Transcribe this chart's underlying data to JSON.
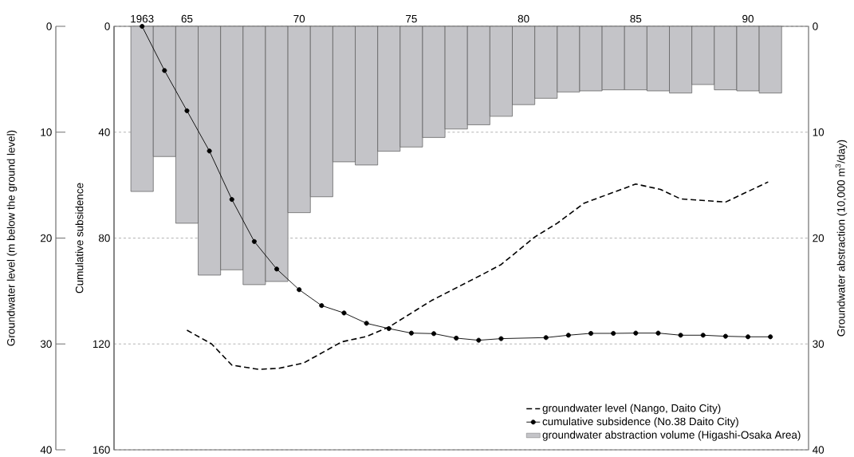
{
  "chart_data": {
    "type": "bar",
    "ylabel": "Groundwater level (m below the ground level)",
    "y3label": "Cumulative subsidence",
    "y2label": "Groundwater abstraction (10,000 m$^{3}$/day)",
    "xlim": [
      1961.75,
      1992.7
    ],
    "xticks": [
      1963,
      {
        "value": 1965,
        "label": "65"
      },
      {
        "value": 1970,
        "label": "70"
      },
      {
        "value": 1975,
        "label": "75"
      },
      {
        "value": 1980,
        "label": "80"
      },
      {
        "value": 1985,
        "label": "85"
      },
      {
        "value": 1990,
        "label": "90"
      }
    ],
    "ylim": [
      40,
      0
    ],
    "yticks": [
      0,
      10,
      20,
      30,
      40
    ],
    "y2lim": [
      40,
      0
    ],
    "y2ticks": [
      0,
      10,
      20,
      30,
      40
    ],
    "y3lim": [
      160,
      0
    ],
    "y3ticks": [
      0,
      40,
      80,
      120,
      160
    ],
    "grid": "y",
    "legend": "bottom right",
    "series": [
      {
        "name": "groundwater level (Nango, Daito City)",
        "type": "line",
        "axis": "y",
        "color": "#000000",
        "line_style": "dashed",
        "marker": "none",
        "x": [
          1965.0,
          1966.1,
          1967.0,
          1968.2,
          1969.1,
          1970.2,
          1971.9,
          1973.0,
          1974.0,
          1975.9,
          1978.2,
          1979.0,
          1980.5,
          1981.5,
          1982.7,
          1985.0,
          1986.1,
          1987.0,
          1989.0,
          1990.9
        ],
        "values": [
          28.7,
          30.0,
          32.0,
          32.4,
          32.3,
          31.8,
          29.8,
          29.3,
          28.4,
          25.9,
          23.4,
          22.5,
          19.9,
          18.6,
          16.7,
          14.9,
          15.4,
          16.3,
          16.6,
          14.7
        ]
      },
      {
        "name": "cumulative subsidence (No.38 Daito City)",
        "type": "line",
        "axis": "y3",
        "color": "#000000",
        "line_style": "solid",
        "marker": "circle",
        "x": [
          1963,
          1964,
          1965,
          1966,
          1967,
          1968,
          1969,
          1970,
          1971,
          1972,
          1973,
          1974,
          1975,
          1976,
          1977,
          1978,
          1979,
          1981,
          1982,
          1983,
          1984,
          1985,
          1986,
          1987,
          1988,
          1989,
          1990,
          1991
        ],
        "values": [
          0,
          16.7,
          31.9,
          47.1,
          65.4,
          81.3,
          91.7,
          99.5,
          105.5,
          108.3,
          112.2,
          114.2,
          115.9,
          116.1,
          117.8,
          118.6,
          118.0,
          117.6,
          116.7,
          116.0,
          116.0,
          115.9,
          115.9,
          116.7,
          116.7,
          117.1,
          117.3,
          117.3
        ]
      },
      {
        "name": "groundwater abstraction volume (Higashi-Osaka Area)",
        "axis": "y2",
        "color": "#c4c4c8",
        "x": [
          1963,
          1964,
          1965,
          1966,
          1967,
          1968,
          1969,
          1970,
          1971,
          1972,
          1973,
          1974,
          1975,
          1976,
          1977,
          1978,
          1979,
          1980,
          1981,
          1982,
          1983,
          1984,
          1985,
          1986,
          1987,
          1988,
          1989,
          1990,
          1991
        ],
        "values": [
          15.6,
          12.3,
          18.6,
          23.5,
          23.0,
          24.4,
          24.1,
          17.6,
          16.1,
          12.8,
          13.1,
          11.8,
          11.4,
          10.5,
          9.7,
          9.3,
          8.5,
          7.4,
          6.8,
          6.2,
          6.1,
          6.0,
          6.0,
          6.1,
          6.3,
          5.5,
          6.0,
          6.1,
          6.3
        ]
      }
    ]
  }
}
